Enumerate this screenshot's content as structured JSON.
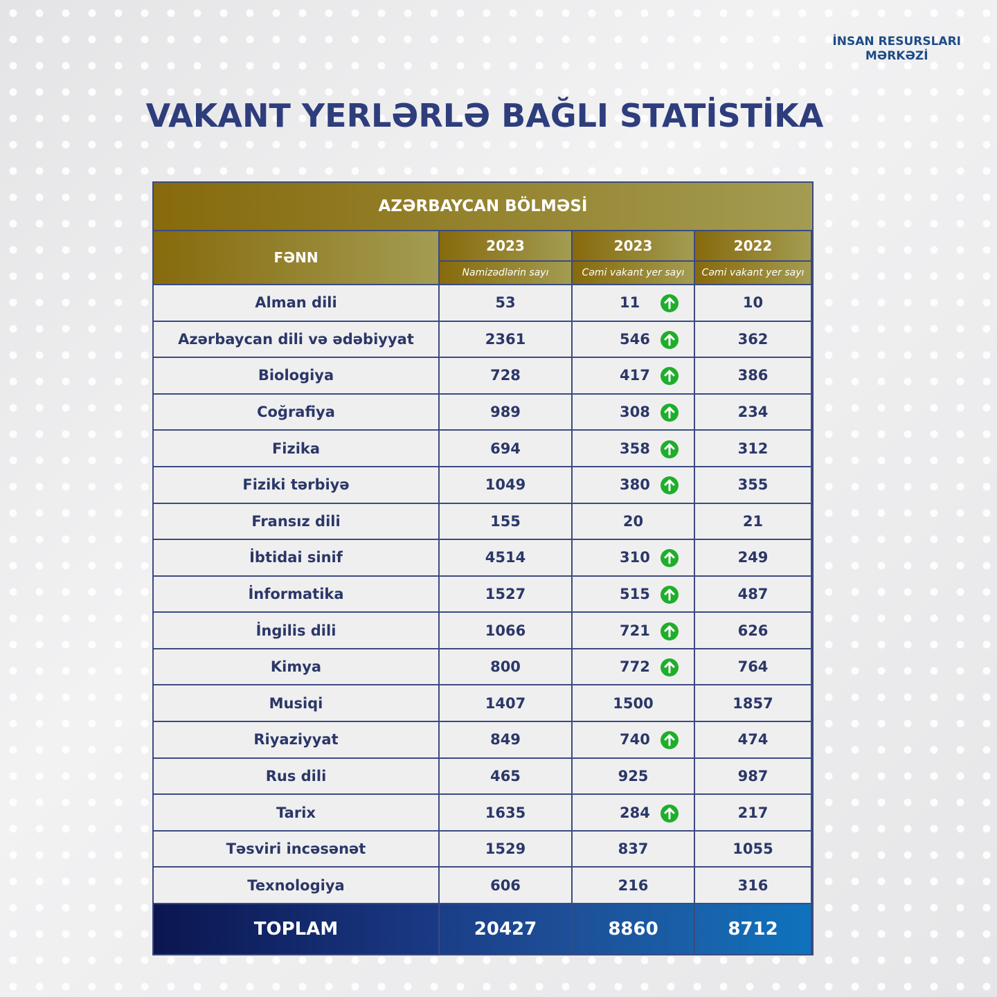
{
  "logo": {
    "line1": "İNSAN RESURSLARI",
    "line2": "MƏRKƏZİ"
  },
  "title": "VAKANT YERLƏRLƏ BAĞLI STATİSTİKA",
  "table": {
    "section": "AZƏRBAYCAN BÖLMƏSİ",
    "header": {
      "subject": "FƏNN",
      "years": [
        "2023",
        "2023",
        "2022"
      ],
      "subtitles": [
        "Namizədlərin sayı",
        "Cəmi vakant yer sayı",
        "Cəmi vakant yer sayı"
      ]
    },
    "rows": [
      [
        "Alman dili",
        53,
        11,
        10
      ],
      [
        "Azərbaycan dili və ədəbiyyat",
        2361,
        546,
        362
      ],
      [
        "Biologiya",
        728,
        417,
        386
      ],
      [
        "Coğrafiya",
        989,
        308,
        234
      ],
      [
        "Fizika",
        694,
        358,
        312
      ],
      [
        "Fiziki tərbiyə",
        1049,
        380,
        355
      ],
      [
        "Fransız dili",
        155,
        20,
        21
      ],
      [
        "İbtidai sinif",
        4514,
        310,
        249
      ],
      [
        "İnformatika",
        1527,
        515,
        487
      ],
      [
        "İngilis dili",
        1066,
        721,
        626
      ],
      [
        "Kimya",
        800,
        772,
        764
      ],
      [
        "Musiqi",
        1407,
        1500,
        1857
      ],
      [
        "Riyaziyyat",
        849,
        740,
        474
      ],
      [
        "Rus dili",
        465,
        925,
        987
      ],
      [
        "Tarix",
        1635,
        284,
        217
      ],
      [
        "Təsviri incəsənət",
        1529,
        837,
        1055
      ],
      [
        "Texnologiya",
        606,
        216,
        316
      ]
    ],
    "increase": [
      true,
      true,
      true,
      true,
      true,
      true,
      false,
      true,
      true,
      true,
      true,
      false,
      true,
      false,
      true,
      false,
      false
    ],
    "total": [
      "TOPLAM",
      20427,
      8860,
      8712
    ]
  }
}
